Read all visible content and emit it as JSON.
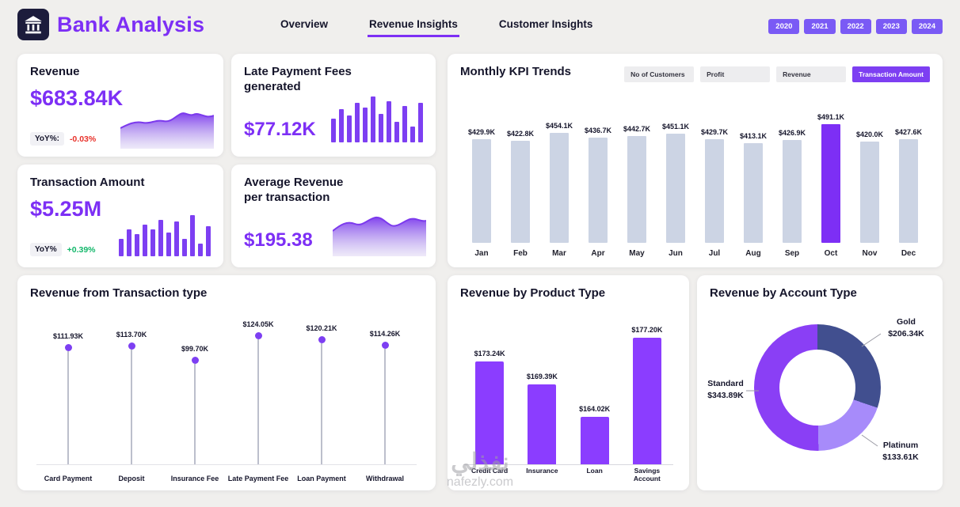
{
  "app": {
    "title": "Bank Analysis"
  },
  "nav": {
    "tabs": [
      {
        "label": "Overview",
        "active": false
      },
      {
        "label": "Revenue Insights",
        "active": true
      },
      {
        "label": "Customer Insights",
        "active": false
      }
    ]
  },
  "years": [
    "2020",
    "2021",
    "2022",
    "2023",
    "2024"
  ],
  "colors": {
    "accent": "#7d2ff5",
    "kpi_bar_gray": "#ccd4e4",
    "negative": "#e8312a",
    "positive": "#12b76a",
    "year_button": "#7a5af5"
  },
  "cards": {
    "revenue": {
      "title": "Revenue",
      "value": "$683.84K",
      "yoy_label": "YoY%:",
      "yoy_value": "-0.03%",
      "yoy_direction": "negative"
    },
    "late_fees": {
      "title": "Late Payment Fees generated",
      "value": "$77.12K",
      "sparkline": [
        30,
        42,
        34,
        50,
        44,
        58,
        36,
        52,
        26,
        46,
        20,
        50
      ]
    },
    "transaction_amount": {
      "title": "Transaction Amount",
      "value": "$5.25M",
      "yoy_label": "YoY%",
      "yoy_value": "+0.39%",
      "yoy_direction": "positive",
      "sparkline": [
        22,
        34,
        28,
        40,
        34,
        46,
        30,
        44,
        22,
        52,
        16,
        38
      ]
    },
    "avg_revenue": {
      "title": "Average Revenue per transaction",
      "value": "$195.38"
    }
  },
  "chart_data": [
    {
      "type": "bar",
      "title": "Monthly KPI Trends",
      "legend": [
        "No of Customers",
        "Profit",
        "Revenue",
        "Transaction Amount"
      ],
      "selected_series": "Transaction Amount",
      "categories": [
        "Jan",
        "Feb",
        "Mar",
        "Apr",
        "May",
        "Jun",
        "Jul",
        "Aug",
        "Sep",
        "Oct",
        "Nov",
        "Dec"
      ],
      "values": [
        429.9,
        422.8,
        454.1,
        436.7,
        442.7,
        451.1,
        429.7,
        413.1,
        426.9,
        491.1,
        420.0,
        427.6
      ],
      "labels": [
        "$429.9K",
        "$422.8K",
        "$454.1K",
        "$436.7K",
        "$442.7K",
        "$451.1K",
        "$429.7K",
        "$413.1K",
        "$426.9K",
        "$491.1K",
        "$420.0K",
        "$427.6K"
      ],
      "highlight_index": 9,
      "bar_color": "#ccd4e4",
      "highlight_color": "#7d2ff5",
      "legend_position": "top-right",
      "grid": false
    },
    {
      "type": "scatter",
      "subtype": "lollipop",
      "title": "Revenue from Transaction type",
      "categories": [
        "Card Payment",
        "Deposit",
        "Insurance Fee",
        "Late Payment Fee",
        "Loan Payment",
        "Withdrawal"
      ],
      "values": [
        111.93,
        113.7,
        99.7,
        124.05,
        120.21,
        114.26
      ],
      "labels": [
        "$111.93K",
        "$113.70K",
        "$99.70K",
        "$124.05K",
        "$120.21K",
        "$114.26K"
      ],
      "point_color": "#7d3ff2",
      "grid": false
    },
    {
      "type": "bar",
      "title": "Revenue by Product Type",
      "categories": [
        "Credit Card",
        "Insurance",
        "Loan",
        "Savings Account"
      ],
      "values": [
        173.24,
        169.39,
        164.02,
        177.2
      ],
      "labels": [
        "$173.24K",
        "$169.39K",
        "$164.02K",
        "$177.20K"
      ],
      "bar_color": "#8b3dff",
      "grid": false
    },
    {
      "type": "pie",
      "subtype": "donut",
      "title": "Revenue by Account Type",
      "slices": [
        {
          "name": "Gold",
          "value": 206.34,
          "value_label": "$206.34K",
          "color": "#414f8f"
        },
        {
          "name": "Platinum",
          "value": 133.61,
          "value_label": "$133.61K",
          "color": "#a78bfa"
        },
        {
          "name": "Standard",
          "value": 343.89,
          "value_label": "$343.89K",
          "color": "#8a3ff5"
        }
      ]
    }
  ],
  "watermark": {
    "line1": "نفذلي",
    "line2": "nafezly.com"
  }
}
